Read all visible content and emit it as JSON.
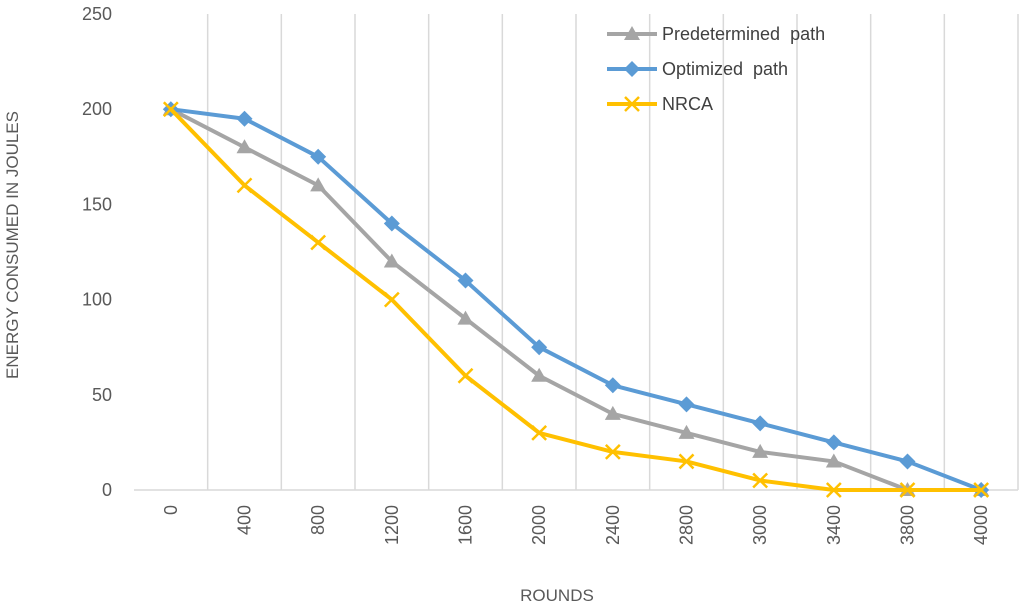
{
  "chart_data": {
    "type": "line",
    "title": "",
    "xlabel": "ROUNDS",
    "ylabel": "ENERGY CONSUMED IN JOULES",
    "categories": [
      "0",
      "400",
      "800",
      "1200",
      "1600",
      "2000",
      "2400",
      "2800",
      "3000",
      "3400",
      "3800",
      "4000"
    ],
    "ylim": [
      0,
      250
    ],
    "yticks": [
      0,
      50,
      100,
      150,
      200,
      250
    ],
    "grid": "vertical",
    "legend_position": "top-right",
    "series": [
      {
        "name": "Predetermined  path",
        "color": "#A5A5A5",
        "marker": "triangle",
        "values": [
          200,
          180,
          160,
          120,
          90,
          60,
          40,
          30,
          20,
          15,
          0,
          0
        ]
      },
      {
        "name": "Optimized  path",
        "color": "#5B9BD5",
        "marker": "diamond",
        "values": [
          200,
          195,
          175,
          140,
          110,
          75,
          55,
          45,
          35,
          25,
          15,
          0
        ]
      },
      {
        "name": "NRCA",
        "color": "#FFC000",
        "marker": "x",
        "values": [
          200,
          160,
          130,
          100,
          60,
          30,
          20,
          15,
          5,
          0,
          0,
          0
        ]
      }
    ]
  }
}
